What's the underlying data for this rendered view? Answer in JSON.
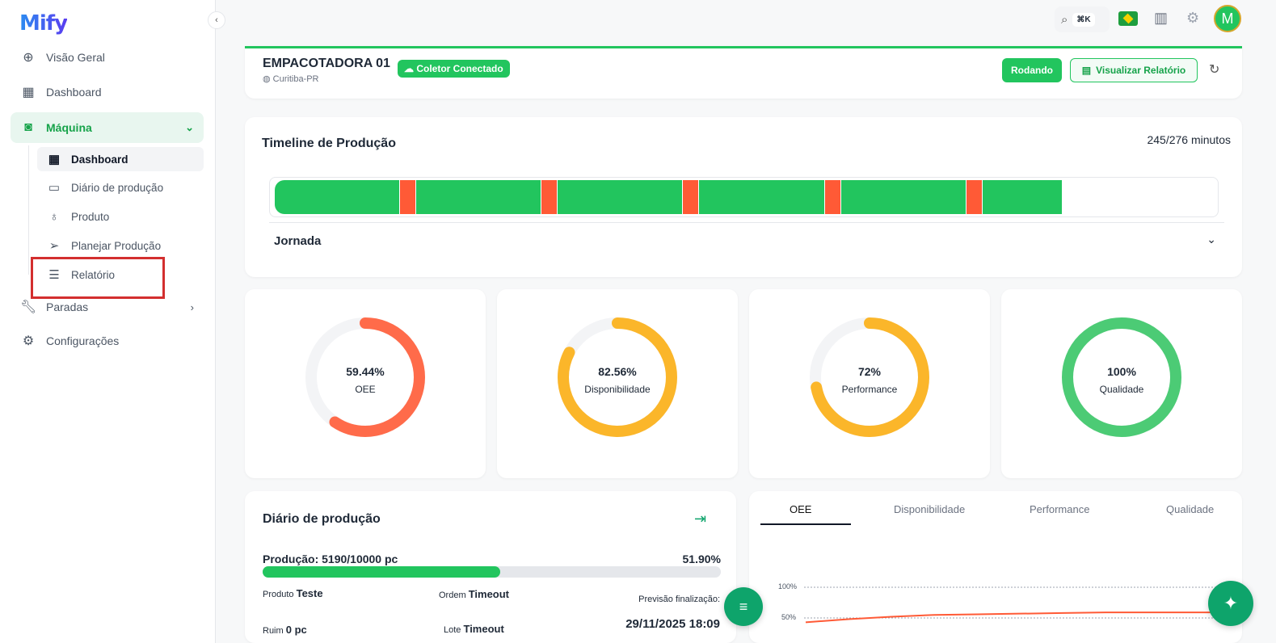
{
  "app": {
    "logo": "Mify"
  },
  "sidebar": {
    "items": [
      {
        "label": "Visão Geral",
        "icon": "globe-search-icon"
      },
      {
        "label": "Dashboard",
        "icon": "grid-icon"
      },
      {
        "label": "Máquina",
        "icon": "machine-icon"
      },
      {
        "label": "Paradas",
        "icon": "wrench-icon"
      },
      {
        "label": "Configurações",
        "icon": "gear-icon"
      }
    ],
    "sub_items": [
      {
        "label": "Dashboard",
        "icon": "grid-icon"
      },
      {
        "label": "Diário de produção",
        "icon": "archive-icon"
      },
      {
        "label": "Produto",
        "icon": "lightbulb-icon"
      },
      {
        "label": "Planejar Produção",
        "icon": "send-clock-icon"
      },
      {
        "label": "Relatório",
        "icon": "document-icon"
      }
    ]
  },
  "topbar": {
    "shortcut": "⌘K",
    "avatar": "M"
  },
  "machine": {
    "name": "EMPACOTADORA 01",
    "location": "Curitiba-PR",
    "collector": "Coletor Conectado",
    "status": "Rodando",
    "report_button": "Visualizar Relatório"
  },
  "timeline": {
    "title": "Timeline de Produção",
    "summary": "245/276 minutos",
    "total_minutes": 276,
    "segments": [
      {
        "state": "running",
        "minutes": 39
      },
      {
        "state": "stopped",
        "minutes": 5
      },
      {
        "state": "running",
        "minutes": 39
      },
      {
        "state": "stopped",
        "minutes": 5
      },
      {
        "state": "running",
        "minutes": 39
      },
      {
        "state": "stopped",
        "minutes": 5
      },
      {
        "state": "running",
        "minutes": 39
      },
      {
        "state": "stopped",
        "minutes": 5
      },
      {
        "state": "running",
        "minutes": 39
      },
      {
        "state": "stopped",
        "minutes": 5
      },
      {
        "state": "running",
        "minutes": 25
      }
    ],
    "colors": {
      "running": "#22c55e",
      "stopped": "#ff5a36"
    },
    "jornada": "Jornada"
  },
  "gauges": [
    {
      "value": "59.44%",
      "fraction": 0.5944,
      "label": "OEE",
      "color": "#ff6b4a"
    },
    {
      "value": "82.56%",
      "fraction": 0.8256,
      "label": "Disponibilidade",
      "color": "#fbb62a"
    },
    {
      "value": "72%",
      "fraction": 0.72,
      "label": "Performance",
      "color": "#fbb62a"
    },
    {
      "value": "100%",
      "fraction": 1.0,
      "label": "Qualidade",
      "color": "#4ccb75"
    }
  ],
  "diario": {
    "title": "Diário de produção",
    "production": "Produção: 5190/10000 pc",
    "percent": "51.90%",
    "fraction": 0.519,
    "produto_label": "Produto",
    "produto": "Teste",
    "ordem_label": "Ordem",
    "ordem": "Timeout",
    "previsao_label": "Previsão finalização:",
    "previsao": "29/11/2025 18:09",
    "ruim_label": "Ruim",
    "ruim": "0 pc",
    "lote_label": "Lote",
    "lote": "Timeout"
  },
  "chart_tabs": [
    "OEE",
    "Disponibilidade",
    "Performance",
    "Qualidade"
  ],
  "chart_data": {
    "type": "line",
    "series": [
      {
        "values": [
          43,
          48,
          52,
          55,
          56,
          57,
          58,
          59,
          59,
          59,
          59
        ]
      }
    ],
    "yticks": [
      "100%",
      "50%"
    ],
    "ylim": [
      0,
      100
    ],
    "color": "#ff5a36",
    "grid": true
  }
}
